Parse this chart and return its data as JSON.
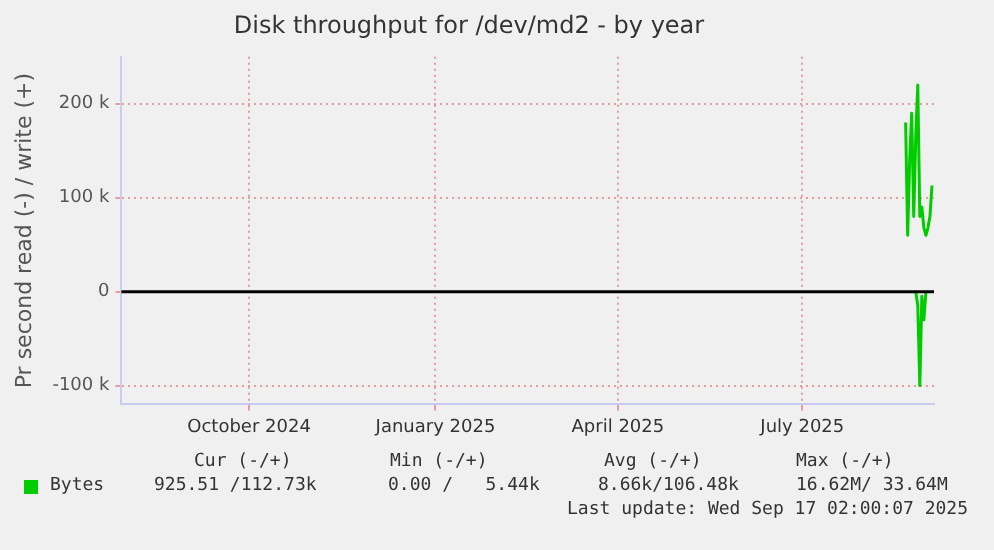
{
  "chart_data": {
    "type": "line",
    "title": "Disk throughput for /dev/md2 - by year",
    "ylabel": "Pr second read (-) / write (+)",
    "xlim": [
      "2024-07-30",
      "2025-09-04"
    ],
    "ylim": [
      -120000,
      250000
    ],
    "xticks": [
      {
        "value": "2024-10-01",
        "label": "October 2024"
      },
      {
        "value": "2025-01-01",
        "label": "January 2025"
      },
      {
        "value": "2025-04-01",
        "label": "April 2025"
      },
      {
        "value": "2025-07-01",
        "label": "July 2025"
      }
    ],
    "yticks": [
      {
        "value": -100000,
        "label": "-100 k"
      },
      {
        "value": 0,
        "label": "0"
      },
      {
        "value": 100000,
        "label": "100 k"
      },
      {
        "value": 200000,
        "label": "200 k"
      }
    ],
    "grid": true,
    "legend": "bottom left",
    "marker": "none",
    "ref_lines": [
      {
        "axis": "y",
        "value": 0,
        "color": "#000000"
      }
    ],
    "series": [
      {
        "name": "Bytes",
        "color": "#00cc00",
        "x": [
          "2025-08-21",
          "2025-08-22",
          "2025-08-23",
          "2025-08-24",
          "2025-08-25",
          "2025-08-26",
          "2025-08-27",
          "2025-08-28",
          "2025-08-29",
          "2025-08-30",
          "2025-08-31",
          "2025-09-01",
          "2025-09-02",
          "2025-09-03"
        ],
        "values": [
          180000,
          60000,
          140000,
          190000,
          80000,
          165000,
          220000,
          80000,
          90000,
          68000,
          60000,
          68000,
          80000,
          113000
        ]
      },
      {
        "color": "#00cc00",
        "x": [
          "2025-08-26",
          "2025-08-27",
          "2025-08-28",
          "2025-08-29",
          "2025-08-30",
          "2025-08-31"
        ],
        "values": [
          0,
          -15000,
          -100000,
          -5000,
          -30000,
          0
        ]
      }
    ],
    "annotations": [
      "Cur (-/+)",
      "Min (-/+)",
      "Avg (-/+)",
      "Max (-/+)",
      "925.51 /112.73k",
      "0.00 /   5.44k",
      "8.66k/106.48k",
      "16.62M/ 33.64M",
      "Last update: Wed Sep 17 02:00:07 2025"
    ]
  }
}
